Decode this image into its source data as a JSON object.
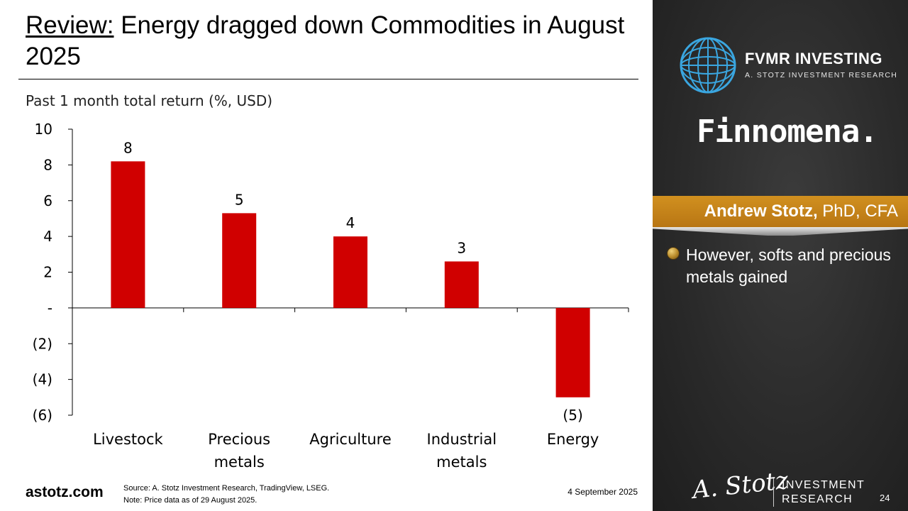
{
  "slide": {
    "title_prefix": "Review:",
    "title_rest": " Energy dragged down Commodities in August 2025",
    "site": "astotz.com",
    "source": "Source: A. Stotz Investment Research, TradingView, LSEG.",
    "note": "Note: Price data as of 29 August 2025.",
    "date": "4 September 2025"
  },
  "side_panel": {
    "brand": "FVMR INVESTING",
    "brand_sub": "A. STOTZ INVESTMENT RESEARCH",
    "partner": "Finnomena.",
    "speaker_name": "Andrew Stotz,",
    "speaker_credentials": " PhD, CFA",
    "bullet": "However, softs and precious metals gained",
    "signature": "A. Stotz",
    "research_line1": "INVESTMENT",
    "research_line2": "RESEARCH",
    "page_number": "24",
    "accent_color": "#c4841a"
  },
  "chart_data": {
    "type": "bar",
    "title": "Past 1 month total return (%, USD)",
    "categories": [
      [
        "Livestock"
      ],
      [
        "Precious",
        "metals"
      ],
      [
        "Agriculture"
      ],
      [
        "Industrial",
        "metals"
      ],
      [
        "Energy"
      ]
    ],
    "values": [
      8.2,
      5.3,
      4.0,
      2.6,
      -5.0
    ],
    "data_labels": [
      "8",
      "5",
      "4",
      "3",
      "(5)"
    ],
    "ylim": [
      -6,
      10
    ],
    "yticks": [
      10,
      8,
      6,
      4,
      2,
      0,
      -2,
      -4,
      -6
    ],
    "ytick_labels": [
      "10",
      "8",
      "6",
      "4",
      "2",
      "-",
      "(2)",
      "(4)",
      "(6)"
    ],
    "bar_color": "#d00000",
    "grid": false
  }
}
